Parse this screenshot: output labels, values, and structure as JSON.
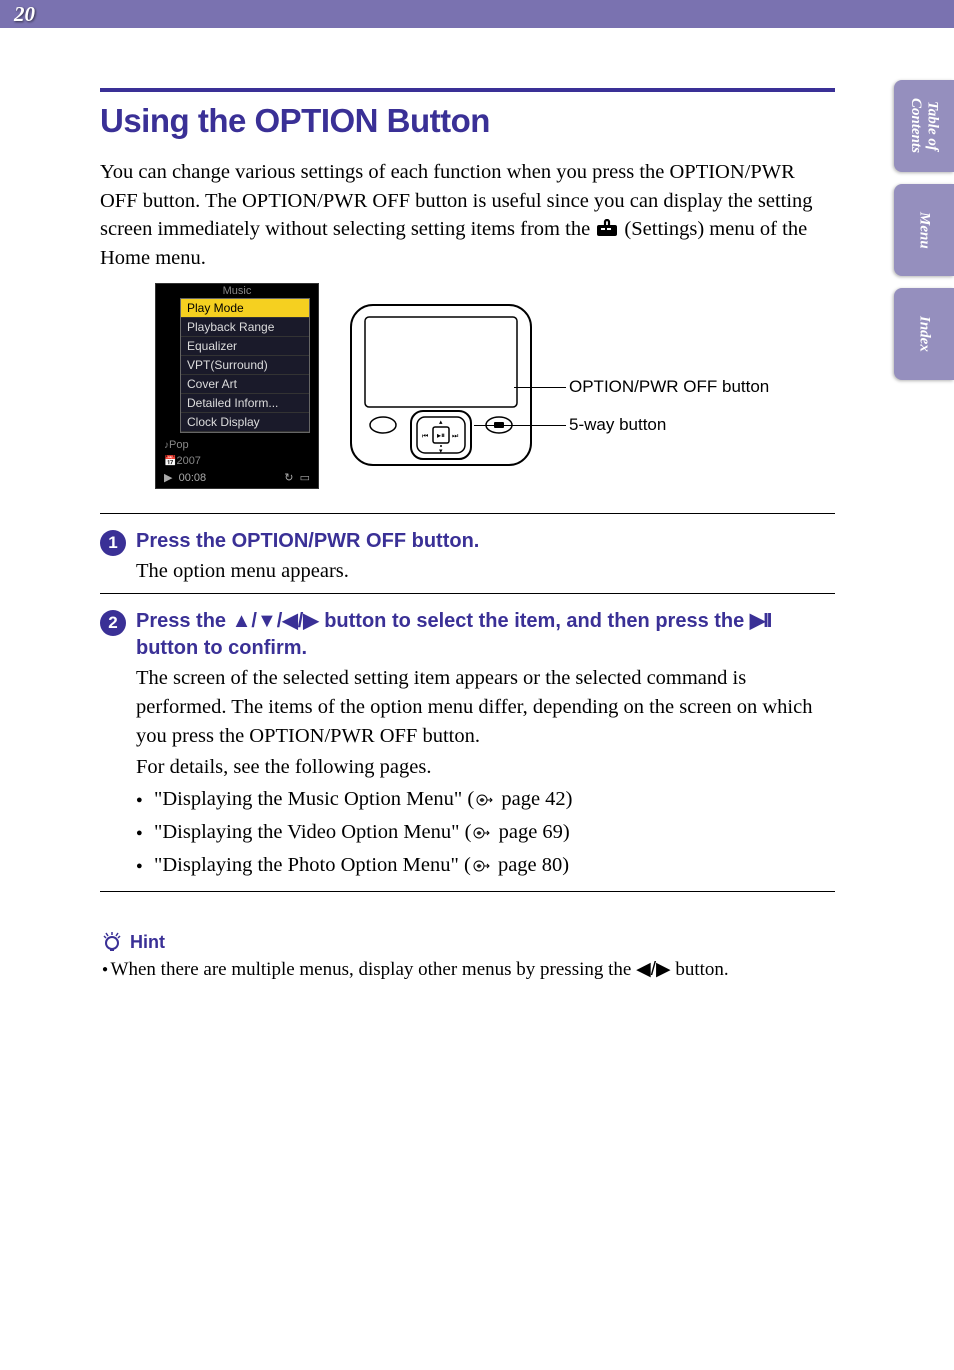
{
  "page_number": "20",
  "side_tabs": [
    "Table of\nContents",
    "Menu",
    "Index"
  ],
  "title": "Using the OPTION Button",
  "intro_parts": {
    "p1": "You can change various settings of each function when you press the OPTION/PWR OFF button. The OPTION/PWR OFF button is useful since you can display the setting screen immediately without selecting setting items from the ",
    "p2": " (Settings) menu of the Home menu."
  },
  "screen": {
    "title": "Music",
    "items": [
      "Play Mode",
      "Playback Range",
      "Equalizer",
      "VPT(Surround)",
      "Cover Art",
      "Detailed Inform...",
      "Clock Display"
    ],
    "highlight_index": 0,
    "bottom1_prefix": "Pop",
    "bottom2_prefix": "2007",
    "time": "00:08",
    "play_glyph": "▶",
    "repeat_glyph": "↻",
    "battery_glyph": "▭"
  },
  "callouts": {
    "option": "OPTION/PWR OFF button",
    "fiveway": "5-way button"
  },
  "steps": [
    {
      "num": "1",
      "head": "Press the OPTION/PWR OFF button.",
      "text": "The option menu appears."
    },
    {
      "num": "2",
      "head_parts": {
        "a": "Press the ",
        "b": " button to select the item, and then press the ",
        "c": " button to confirm."
      },
      "text": "The screen of the selected setting item appears or the selected command is performed. The items of the option menu differ, depending on the screen on which you press the OPTION/PWR OFF button.",
      "text2": "For details, see the following pages.",
      "bullets": [
        {
          "t1": "\"Displaying the Music Option Menu\" (",
          "page": " page 42)",
          "link": true
        },
        {
          "t1": "\"Displaying the Video Option Menu\" (",
          "page": " page 69)",
          "link": true
        },
        {
          "t1": "\"Displaying the Photo Option Menu\" (",
          "page": " page 80)",
          "link": true
        }
      ]
    }
  ],
  "hint": {
    "label": "Hint",
    "text_parts": {
      "a": "When there are multiple menus, display other menus by pressing the ",
      "b": " button."
    }
  },
  "colors": {
    "accent": "#3a3096",
    "tab": "#958fbe",
    "topbar": "#7a72b0",
    "highlight": "#f5d020"
  }
}
